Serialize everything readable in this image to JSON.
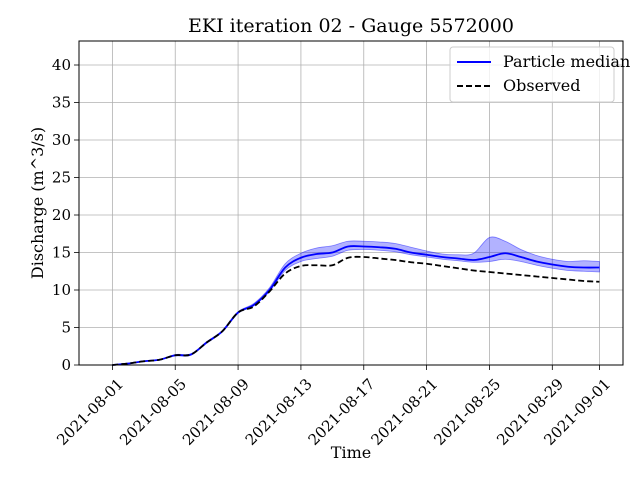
{
  "chart_data": {
    "type": "line",
    "title": "EKI iteration 02 - Gauge 5572000",
    "xlabel": "Time",
    "ylabel": "Discharge (m^3/s)",
    "x_type": "date",
    "xlim": [
      "2021-07-29T21:00",
      "2021-09-02T12:00"
    ],
    "ylim": [
      0,
      43.2
    ],
    "grid": true,
    "legend_position": "top-right",
    "x_ticks": [
      "2021-08-01",
      "2021-08-05",
      "2021-08-09",
      "2021-08-13",
      "2021-08-17",
      "2021-08-21",
      "2021-08-25",
      "2021-08-29",
      "2021-09-01"
    ],
    "y_ticks": [
      0,
      5,
      10,
      15,
      20,
      25,
      30,
      35,
      40
    ],
    "x": [
      "2021-08-01",
      "2021-08-02",
      "2021-08-03",
      "2021-08-04",
      "2021-08-05",
      "2021-08-06",
      "2021-08-07",
      "2021-08-08",
      "2021-08-09",
      "2021-08-10",
      "2021-08-11",
      "2021-08-12",
      "2021-08-13",
      "2021-08-14",
      "2021-08-15",
      "2021-08-16",
      "2021-08-17",
      "2021-08-18",
      "2021-08-19",
      "2021-08-20",
      "2021-08-21",
      "2021-08-22",
      "2021-08-23",
      "2021-08-24",
      "2021-08-25",
      "2021-08-26",
      "2021-08-27",
      "2021-08-28",
      "2021-08-29",
      "2021-08-30",
      "2021-08-31",
      "2021-09-01"
    ],
    "series": [
      {
        "name": "Particle median",
        "color": "#0000ff",
        "style": "solid",
        "values": [
          0.0,
          0.2,
          0.5,
          0.7,
          1.3,
          1.4,
          3.0,
          4.5,
          7.0,
          8.0,
          10.0,
          13.0,
          14.3,
          14.8,
          15.0,
          15.8,
          15.8,
          15.7,
          15.5,
          15.0,
          14.7,
          14.4,
          14.2,
          14.0,
          14.4,
          14.9,
          14.4,
          13.8,
          13.4,
          13.1,
          13.0,
          13.0
        ]
      },
      {
        "name": "Observed",
        "color": "#000000",
        "style": "dashed",
        "values": [
          0.0,
          0.2,
          0.5,
          0.7,
          1.3,
          1.4,
          3.0,
          4.5,
          7.0,
          7.8,
          9.8,
          12.2,
          13.2,
          13.3,
          13.3,
          14.3,
          14.4,
          14.2,
          14.0,
          13.7,
          13.5,
          13.2,
          12.9,
          12.6,
          12.4,
          12.2,
          12.0,
          11.8,
          11.6,
          11.4,
          11.2,
          11.1
        ]
      }
    ],
    "band": {
      "color": "#0000ff",
      "opacity": 0.3,
      "lower": [
        0.0,
        0.2,
        0.5,
        0.7,
        1.2,
        1.3,
        2.9,
        4.4,
        6.9,
        7.9,
        9.8,
        12.6,
        13.8,
        14.2,
        14.5,
        15.3,
        15.4,
        15.3,
        15.1,
        14.7,
        14.4,
        14.1,
        13.9,
        13.7,
        13.8,
        14.1,
        13.8,
        13.3,
        12.9,
        12.6,
        12.5,
        12.4
      ],
      "upper": [
        0.0,
        0.2,
        0.5,
        0.7,
        1.4,
        1.5,
        3.1,
        4.6,
        7.1,
        8.2,
        10.3,
        13.5,
        14.9,
        15.6,
        15.9,
        16.5,
        16.5,
        16.4,
        16.2,
        15.7,
        15.2,
        14.8,
        14.7,
        14.9,
        17.0,
        16.5,
        15.4,
        14.6,
        14.1,
        13.8,
        13.9,
        13.8
      ]
    }
  }
}
